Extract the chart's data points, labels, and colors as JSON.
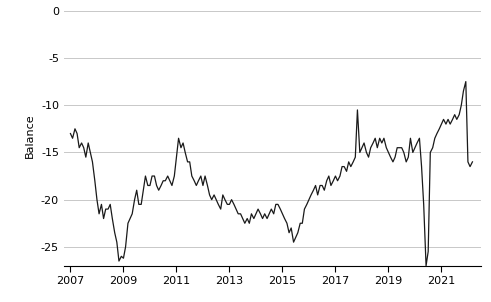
{
  "title": "",
  "ylabel": "Balance",
  "ylim": [
    -27,
    0.5
  ],
  "yticks": [
    0,
    -5,
    -10,
    -15,
    -20,
    -25
  ],
  "xlim_start": 2006.75,
  "xlim_end": 2022.5,
  "xtick_years": [
    2007,
    2009,
    2011,
    2013,
    2015,
    2017,
    2019,
    2021
  ],
  "line_color": "#1a1a1a",
  "line_width": 0.9,
  "background_color": "#ffffff",
  "grid_color": "#c8c8c8",
  "dates": [
    2007.0,
    2007.08,
    2007.17,
    2007.25,
    2007.33,
    2007.42,
    2007.5,
    2007.58,
    2007.67,
    2007.75,
    2007.83,
    2007.92,
    2008.0,
    2008.08,
    2008.17,
    2008.25,
    2008.33,
    2008.42,
    2008.5,
    2008.58,
    2008.67,
    2008.75,
    2008.83,
    2008.92,
    2009.0,
    2009.08,
    2009.17,
    2009.25,
    2009.33,
    2009.42,
    2009.5,
    2009.58,
    2009.67,
    2009.75,
    2009.83,
    2009.92,
    2010.0,
    2010.08,
    2010.17,
    2010.25,
    2010.33,
    2010.42,
    2010.5,
    2010.58,
    2010.67,
    2010.75,
    2010.83,
    2010.92,
    2011.0,
    2011.08,
    2011.17,
    2011.25,
    2011.33,
    2011.42,
    2011.5,
    2011.58,
    2011.67,
    2011.75,
    2011.83,
    2011.92,
    2012.0,
    2012.08,
    2012.17,
    2012.25,
    2012.33,
    2012.42,
    2012.5,
    2012.58,
    2012.67,
    2012.75,
    2012.83,
    2012.92,
    2013.0,
    2013.08,
    2013.17,
    2013.25,
    2013.33,
    2013.42,
    2013.5,
    2013.58,
    2013.67,
    2013.75,
    2013.83,
    2013.92,
    2014.0,
    2014.08,
    2014.17,
    2014.25,
    2014.33,
    2014.42,
    2014.5,
    2014.58,
    2014.67,
    2014.75,
    2014.83,
    2014.92,
    2015.0,
    2015.08,
    2015.17,
    2015.25,
    2015.33,
    2015.42,
    2015.5,
    2015.58,
    2015.67,
    2015.75,
    2015.83,
    2015.92,
    2016.0,
    2016.08,
    2016.17,
    2016.25,
    2016.33,
    2016.42,
    2016.5,
    2016.58,
    2016.67,
    2016.75,
    2016.83,
    2016.92,
    2017.0,
    2017.08,
    2017.17,
    2017.25,
    2017.33,
    2017.42,
    2017.5,
    2017.58,
    2017.67,
    2017.75,
    2017.83,
    2017.92,
    2018.0,
    2018.08,
    2018.17,
    2018.25,
    2018.33,
    2018.42,
    2018.5,
    2018.58,
    2018.67,
    2018.75,
    2018.83,
    2018.92,
    2019.0,
    2019.08,
    2019.17,
    2019.25,
    2019.33,
    2019.42,
    2019.5,
    2019.58,
    2019.67,
    2019.75,
    2019.83,
    2019.92,
    2020.0,
    2020.08,
    2020.17,
    2020.25,
    2020.33,
    2020.42,
    2020.5,
    2020.58,
    2020.67,
    2020.75,
    2020.83,
    2020.92,
    2021.0,
    2021.08,
    2021.17,
    2021.25,
    2021.33,
    2021.42,
    2021.5,
    2021.58,
    2021.67,
    2021.75,
    2021.83,
    2021.92,
    2022.0,
    2022.08,
    2022.17
  ],
  "values": [
    -13.0,
    -13.5,
    -12.5,
    -13.0,
    -14.5,
    -14.0,
    -14.5,
    -15.5,
    -14.0,
    -15.0,
    -16.0,
    -18.0,
    -20.0,
    -21.5,
    -20.5,
    -22.0,
    -21.0,
    -21.0,
    -20.5,
    -22.0,
    -23.5,
    -24.5,
    -26.5,
    -26.0,
    -26.2,
    -25.0,
    -22.5,
    -22.0,
    -21.5,
    -20.0,
    -19.0,
    -20.5,
    -20.5,
    -19.0,
    -17.5,
    -18.5,
    -18.5,
    -17.5,
    -17.5,
    -18.5,
    -19.0,
    -18.5,
    -18.0,
    -18.0,
    -17.5,
    -18.0,
    -18.5,
    -17.5,
    -15.5,
    -13.5,
    -14.5,
    -14.0,
    -15.0,
    -16.0,
    -16.0,
    -17.5,
    -18.0,
    -18.5,
    -18.0,
    -17.5,
    -18.5,
    -17.5,
    -18.5,
    -19.5,
    -20.0,
    -19.5,
    -20.0,
    -20.5,
    -21.0,
    -19.5,
    -20.0,
    -20.5,
    -20.5,
    -20.0,
    -20.5,
    -21.0,
    -21.5,
    -21.5,
    -22.0,
    -22.5,
    -22.0,
    -22.5,
    -21.5,
    -22.0,
    -21.5,
    -21.0,
    -21.5,
    -22.0,
    -21.5,
    -22.0,
    -21.5,
    -21.0,
    -21.5,
    -20.5,
    -20.5,
    -21.0,
    -21.5,
    -22.0,
    -22.5,
    -23.5,
    -23.0,
    -24.5,
    -24.0,
    -23.5,
    -22.5,
    -22.5,
    -21.0,
    -20.5,
    -20.0,
    -19.5,
    -19.0,
    -18.5,
    -19.5,
    -18.5,
    -18.5,
    -19.0,
    -18.0,
    -17.5,
    -18.5,
    -18.0,
    -17.5,
    -18.0,
    -17.5,
    -16.5,
    -16.5,
    -17.0,
    -16.0,
    -16.5,
    -16.0,
    -15.5,
    -10.5,
    -15.0,
    -14.5,
    -14.0,
    -15.0,
    -15.5,
    -14.5,
    -14.0,
    -13.5,
    -14.5,
    -13.5,
    -14.0,
    -13.5,
    -14.5,
    -15.0,
    -15.5,
    -16.0,
    -15.5,
    -14.5,
    -14.5,
    -14.5,
    -15.0,
    -16.0,
    -15.5,
    -13.5,
    -15.0,
    -14.5,
    -14.0,
    -13.5,
    -16.5,
    -20.5,
    -27.0,
    -25.5,
    -15.0,
    -14.5,
    -13.5,
    -13.0,
    -12.5,
    -12.0,
    -11.5,
    -12.0,
    -11.5,
    -12.0,
    -11.5,
    -11.0,
    -11.5,
    -11.0,
    -10.0,
    -8.5,
    -7.5,
    -16.0,
    -16.5,
    -16.0
  ]
}
